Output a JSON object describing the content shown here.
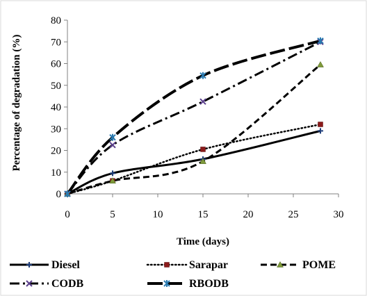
{
  "chart_data": {
    "type": "line",
    "xlabel": "Time (days)",
    "ylabel": "Percentage of degradation (%)",
    "xlim": [
      0,
      30
    ],
    "ylim": [
      0,
      80
    ],
    "x_ticks": [
      "0",
      "5",
      "10",
      "15",
      "20",
      "25",
      "30"
    ],
    "y_ticks": [
      "0",
      "10",
      "20",
      "30",
      "40",
      "50",
      "60",
      "70",
      "80"
    ],
    "grid": false,
    "legend_position": "bottom",
    "series": [
      {
        "name": "Diesel",
        "x": [
          0,
          5,
          15,
          28
        ],
        "y": [
          0,
          9.5,
          16,
          29
        ],
        "color": "#000000",
        "dash": "solid",
        "marker": "plus"
      },
      {
        "name": "Sarapar",
        "x": [
          0,
          5,
          15,
          28
        ],
        "y": [
          0,
          6,
          20.5,
          32
        ],
        "color": "#000000",
        "dash": "dotted",
        "marker": "square-red"
      },
      {
        "name": "POME",
        "x": [
          0,
          5,
          15,
          28
        ],
        "y": [
          0,
          6,
          15,
          59.5
        ],
        "color": "#000000",
        "dash": "dashed",
        "marker": "triangle-green"
      },
      {
        "name": "CODB",
        "x": [
          0,
          5,
          15,
          28
        ],
        "y": [
          0,
          22.5,
          42.5,
          70
        ],
        "color": "#000000",
        "dash": "dashdot",
        "marker": "x-purple"
      },
      {
        "name": "RBODB",
        "x": [
          0,
          5,
          15,
          28
        ],
        "y": [
          0,
          26,
          54.5,
          70.5
        ],
        "color": "#000000",
        "dash": "longdash",
        "marker": "star-blue"
      }
    ]
  }
}
